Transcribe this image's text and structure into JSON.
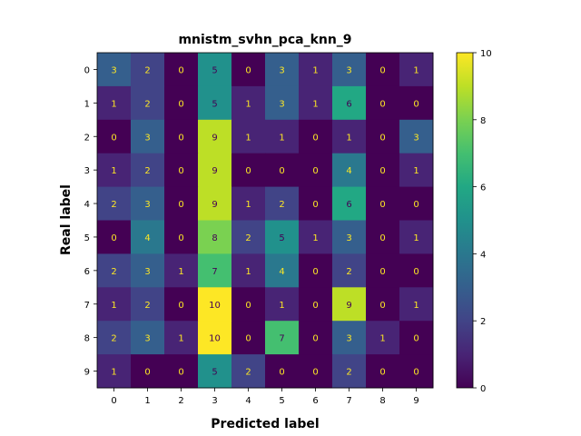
{
  "chart_data": {
    "type": "heatmap",
    "title": "mnistm_svhn_pca_knn_9",
    "xlabel": "Predicted label",
    "ylabel": "Real label",
    "x_categories": [
      "0",
      "1",
      "2",
      "3",
      "4",
      "5",
      "6",
      "7",
      "8",
      "9"
    ],
    "y_categories": [
      "0",
      "1",
      "2",
      "3",
      "4",
      "5",
      "6",
      "7",
      "8",
      "9"
    ],
    "matrix": [
      [
        3,
        2,
        0,
        5,
        0,
        3,
        1,
        3,
        0,
        1
      ],
      [
        1,
        2,
        0,
        5,
        1,
        3,
        1,
        6,
        0,
        0
      ],
      [
        0,
        3,
        0,
        9,
        1,
        1,
        0,
        1,
        0,
        3
      ],
      [
        1,
        2,
        0,
        9,
        0,
        0,
        0,
        4,
        0,
        1
      ],
      [
        2,
        3,
        0,
        9,
        1,
        2,
        0,
        6,
        0,
        0
      ],
      [
        0,
        4,
        0,
        8,
        2,
        5,
        1,
        3,
        0,
        1
      ],
      [
        2,
        3,
        1,
        7,
        1,
        4,
        0,
        2,
        0,
        0
      ],
      [
        1,
        2,
        0,
        10,
        0,
        1,
        0,
        9,
        0,
        1
      ],
      [
        2,
        3,
        1,
        10,
        0,
        7,
        0,
        3,
        1,
        0
      ],
      [
        1,
        0,
        0,
        5,
        2,
        0,
        0,
        2,
        0,
        0
      ]
    ],
    "colorbar": {
      "min": 0,
      "max": 10,
      "ticks": [
        "0",
        "2",
        "4",
        "6",
        "8",
        "10"
      ]
    },
    "colormap": "viridis",
    "grid": false,
    "legend": "colorbar-right"
  }
}
